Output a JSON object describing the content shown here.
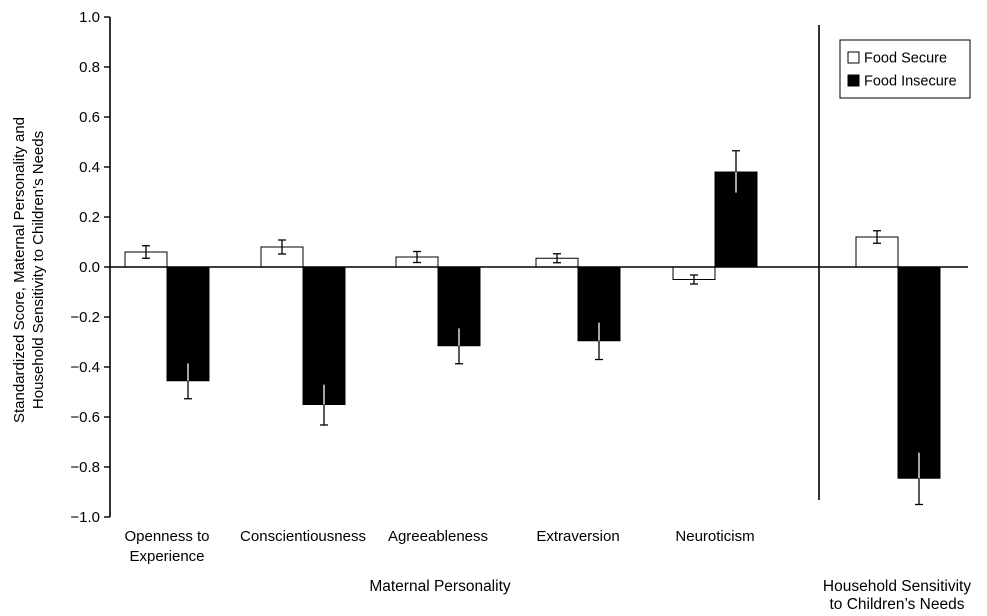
{
  "chart_data": {
    "type": "bar",
    "ylabel": [
      "Standardized Score, Maternal Personality and",
      "Household Sensitivity to Children’s Needs"
    ],
    "ylim": [
      -1.0,
      1.0
    ],
    "yticks": [
      "1.0",
      "0.8",
      "0.6",
      "0.4",
      "0.2",
      "0.0",
      "−0.2",
      "−0.4",
      "−0.6",
      "−0.8",
      "−1.0"
    ],
    "grid": false,
    "legend_position": "top-right",
    "categories": [
      [
        "Openness to",
        "Experience"
      ],
      [
        "Conscientiousness"
      ],
      [
        "Agreeableness"
      ],
      [
        "Extraversion"
      ],
      [
        "Neuroticism"
      ],
      []
    ],
    "groups": [
      {
        "label": [
          "Maternal Personality"
        ],
        "categories": [
          0,
          1,
          2,
          3,
          4
        ]
      },
      {
        "label": [
          "Household Sensitivity",
          "to Children’s Needs"
        ],
        "categories": [
          5
        ]
      }
    ],
    "series": [
      {
        "name": "Food Secure",
        "fill": "#ffffff",
        "values": [
          0.06,
          0.08,
          0.04,
          0.035,
          -0.05,
          0.12
        ],
        "error": [
          0.025,
          0.028,
          0.022,
          0.018,
          0.018,
          0.025
        ]
      },
      {
        "name": "Food Insecure",
        "fill": "#000000",
        "values": [
          -0.455,
          -0.55,
          -0.315,
          -0.295,
          0.38,
          -0.845
        ],
        "error": [
          0.072,
          0.082,
          0.072,
          0.075,
          0.085,
          0.105
        ]
      }
    ]
  }
}
